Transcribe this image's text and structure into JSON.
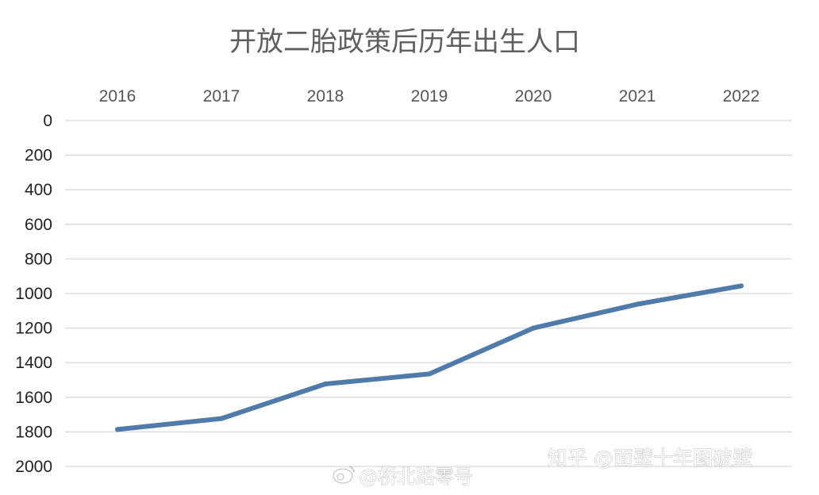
{
  "chart_data": {
    "type": "line",
    "title": "开放二胎政策后历年出生人口",
    "x": [
      "2016",
      "2017",
      "2018",
      "2019",
      "2020",
      "2021",
      "2022"
    ],
    "series": [
      {
        "values": [
          1786,
          1723,
          1523,
          1465,
          1200,
          1062,
          956
        ]
      }
    ],
    "yticks": [
      "0",
      "200",
      "400",
      "600",
      "800",
      "1000",
      "1200",
      "1400",
      "1600",
      "1800",
      "2000"
    ],
    "ylim": [
      0,
      2000
    ],
    "y_inverted": true,
    "x_axis_position": "top",
    "grid": true,
    "legend": "none",
    "colors": {
      "line": "#4f7bab",
      "grid": "#d9d9d9"
    }
  },
  "watermarks": {
    "zhihu": "知乎 @面壁十年图破壁",
    "weibo": "@桥北路零号"
  }
}
